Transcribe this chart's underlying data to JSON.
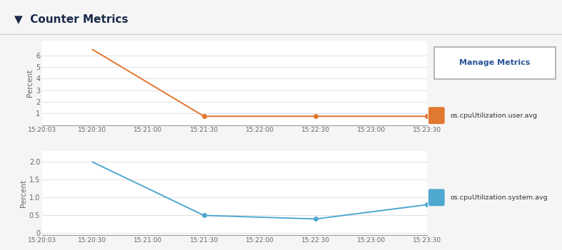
{
  "title": "Counter Metrics",
  "title_arrow": "▼",
  "background_color": "#f5f5f5",
  "plot_bg_color": "#ffffff",
  "border_color": "#cccccc",
  "x_labels": [
    "15:20:03",
    "15:20:30",
    "15:21:00",
    "15:21:30",
    "15:22:00",
    "15:22:30",
    "15:23:00",
    "15:23:30"
  ],
  "x_values": [
    0,
    27,
    57,
    87,
    117,
    147,
    177,
    207
  ],
  "chart1": {
    "ylabel": "Percent",
    "line_color": "#E07830",
    "line_label": "os.cpuUtilization.user.avg",
    "y_values": [
      null,
      6.5,
      null,
      0.75,
      null,
      0.75,
      null,
      0.75
    ],
    "yticks": [
      1,
      2,
      3,
      4,
      5,
      6
    ],
    "ylim": [
      0,
      7.2
    ]
  },
  "chart2": {
    "ylabel": "Percent",
    "line_color": "#4FA8D0",
    "line_label": "os.cpuUtilization.system.avg",
    "y_values": [
      null,
      2.0,
      null,
      0.5,
      null,
      0.4,
      null,
      0.8
    ],
    "yticks": [
      0,
      0.5,
      1.0,
      1.5,
      2.0
    ],
    "ylim": [
      -0.05,
      2.3
    ]
  },
  "manage_button_label": "Manage Metrics",
  "legend_color1": "#E07830",
  "legend_color2": "#4FA8D0",
  "grid_color": "#dddddd",
  "tick_color": "#666666",
  "spine_color": "#999999"
}
